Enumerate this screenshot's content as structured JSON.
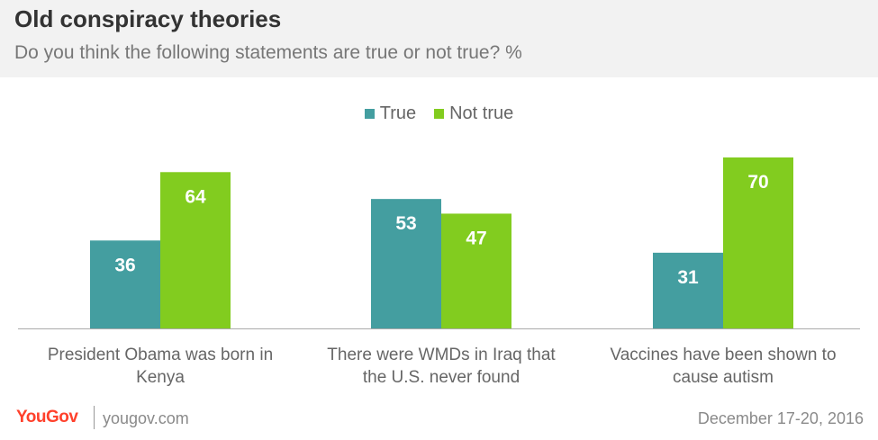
{
  "header": {
    "title": "Old conspiracy theories",
    "subtitle": "Do you think the following statements are true or not true? %"
  },
  "legend": {
    "items": [
      {
        "label": "True",
        "color": "#449ea0"
      },
      {
        "label": "Not true",
        "color": "#82cc1f"
      }
    ]
  },
  "chart_data": {
    "type": "bar",
    "title": "Old conspiracy theories",
    "subtitle": "Do you think the following statements are true or not true? %",
    "categories": [
      [
        "President Obama was born in",
        "Kenya"
      ],
      [
        "There were WMDs in Iraq that",
        "the U.S. never found"
      ],
      [
        "Vaccines have been shown to",
        "cause autism"
      ]
    ],
    "series": [
      {
        "name": "True",
        "values": [
          36,
          53,
          31
        ],
        "color": "#449ea0"
      },
      {
        "name": "Not true",
        "values": [
          64,
          47,
          70
        ],
        "color": "#82cc1f"
      }
    ],
    "ylim": [
      0,
      70
    ],
    "grid": false,
    "legend_position": "top-center"
  },
  "footer": {
    "logo": "YouGov",
    "site": "yougov.com",
    "date": "December 17-20, 2016"
  }
}
